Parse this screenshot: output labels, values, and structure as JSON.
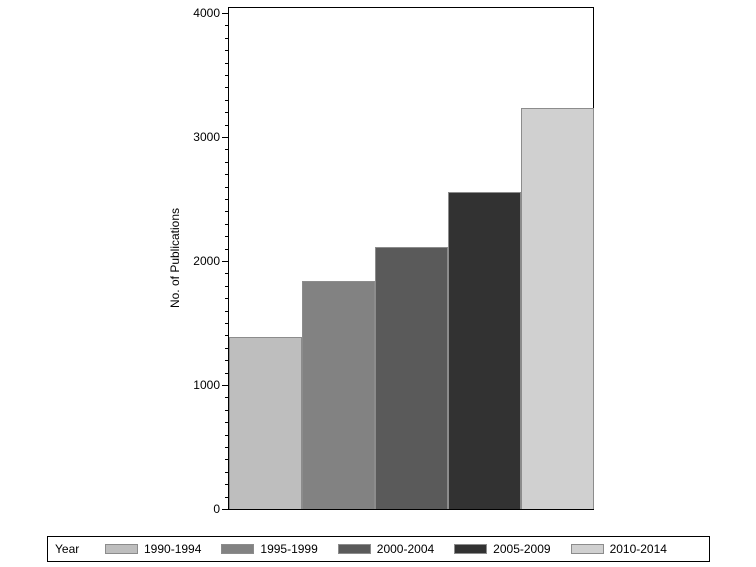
{
  "chart_data": {
    "type": "bar",
    "title": "",
    "xlabel": "",
    "ylabel": "No. of Publications",
    "ylim": [
      0,
      4000
    ],
    "yticks": [
      0,
      1000,
      2000,
      3000,
      4000
    ],
    "ytick_labels": [
      "0",
      "1000",
      "2000",
      "3000",
      "4000"
    ],
    "minor_tick_step": 100,
    "grid": false,
    "legend_position": "bottom",
    "legend_title": "Year",
    "categories": [
      "1990-1994",
      "1995-1999",
      "2000-2004",
      "2005-2009",
      "2010-2014"
    ],
    "values": [
      1390,
      1840,
      2110,
      2560,
      3230
    ],
    "colors": [
      "#bebebe",
      "#828282",
      "#5a5a5a",
      "#323232",
      "#d0d0d0"
    ]
  },
  "axis": {
    "ylabel": "No. of Publications",
    "ticks": [
      "0",
      "1000",
      "2000",
      "3000",
      "4000"
    ]
  },
  "legend": {
    "title": "Year",
    "items": [
      {
        "label": "1990-1994",
        "color": "#bebebe"
      },
      {
        "label": "1995-1999",
        "color": "#828282"
      },
      {
        "label": "2000-2004",
        "color": "#5a5a5a"
      },
      {
        "label": "2005-2009",
        "color": "#323232"
      },
      {
        "label": "2010-2014",
        "color": "#d0d0d0"
      }
    ]
  }
}
